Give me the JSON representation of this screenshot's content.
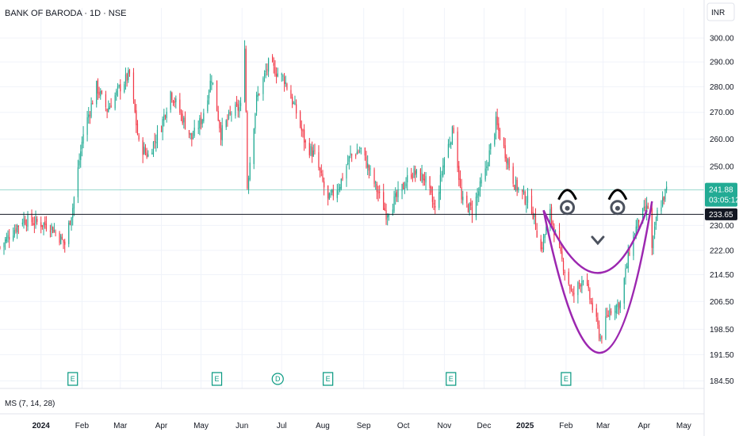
{
  "header": {
    "title": "BANK OF BARODA · 1D · NSE",
    "currency": "INR"
  },
  "indicator": {
    "label": "MS (7, 14, 28)"
  },
  "price_tags": {
    "last_price": "241.88",
    "countdown": "03:05:12",
    "level": "233.65",
    "last_color": "#22ab94",
    "level_color": "#131722"
  },
  "colors": {
    "up": "#22ab94",
    "down": "#f23645",
    "drawing": "#9c27b0",
    "sketch": "#4c525e"
  },
  "events": [
    {
      "label": "E",
      "date": "2024-01-25"
    },
    {
      "label": "E",
      "date": "2024-05-13"
    },
    {
      "label": "D",
      "date": "2024-06-28"
    },
    {
      "label": "E",
      "date": "2024-08-05"
    },
    {
      "label": "E",
      "date": "2024-11-06"
    },
    {
      "label": "E",
      "date": "2025-02-01"
    }
  ],
  "chart_data": {
    "type": "candlestick",
    "title": "BANK OF BARODA · 1D · NSE",
    "y_axis": {
      "position": "right",
      "scale": "log",
      "ticks": [
        "300.00",
        "290.00",
        "280.00",
        "270.00",
        "260.00",
        "250.00",
        "230.00",
        "222.00",
        "214.50",
        "206.50",
        "198.50",
        "191.50",
        "184.50"
      ],
      "ylim": [
        181,
        308
      ]
    },
    "x_axis": {
      "ticks": [
        {
          "label": "2024",
          "date": "2024-01-01"
        },
        {
          "label": "Feb",
          "date": "2024-02-01"
        },
        {
          "label": "Mar",
          "date": "2024-03-01"
        },
        {
          "label": "Apr",
          "date": "2024-04-01"
        },
        {
          "label": "May",
          "date": "2024-05-01"
        },
        {
          "label": "Jun",
          "date": "2024-06-01"
        },
        {
          "label": "Jul",
          "date": "2024-07-01"
        },
        {
          "label": "Aug",
          "date": "2024-08-01"
        },
        {
          "label": "Sep",
          "date": "2024-09-01"
        },
        {
          "label": "Oct",
          "date": "2024-10-01"
        },
        {
          "label": "Nov",
          "date": "2024-11-01"
        },
        {
          "label": "Dec",
          "date": "2024-12-01"
        },
        {
          "label": "2025",
          "date": "2025-01-01"
        },
        {
          "label": "Feb",
          "date": "2025-02-01"
        },
        {
          "label": "Mar",
          "date": "2025-03-01"
        },
        {
          "label": "Apr",
          "date": "2025-04-01"
        },
        {
          "label": "May",
          "date": "2025-05-01"
        }
      ],
      "xlim": [
        "2023-12-01",
        "2025-05-14"
      ]
    },
    "horizontal_lines": [
      {
        "value": 233.65,
        "color": "#131722"
      },
      {
        "value": 241.88,
        "color": "#22ab94"
      }
    ],
    "close_path": [
      [
        "2023-12-01",
        223
      ],
      [
        "2023-12-18",
        232
      ],
      [
        "2024-01-08",
        230
      ],
      [
        "2024-01-19",
        224
      ],
      [
        "2024-01-25",
        236
      ],
      [
        "2024-02-02",
        262
      ],
      [
        "2024-02-12",
        280
      ],
      [
        "2024-02-20",
        271
      ],
      [
        "2024-03-01",
        280
      ],
      [
        "2024-03-08",
        285
      ],
      [
        "2024-03-15",
        258
      ],
      [
        "2024-03-22",
        254
      ],
      [
        "2024-04-01",
        265
      ],
      [
        "2024-04-08",
        278
      ],
      [
        "2024-04-15",
        270
      ],
      [
        "2024-04-24",
        260
      ],
      [
        "2024-05-02",
        268
      ],
      [
        "2024-05-09",
        284
      ],
      [
        "2024-05-16",
        262
      ],
      [
        "2024-05-24",
        270
      ],
      [
        "2024-05-31",
        272
      ],
      [
        "2024-06-03",
        298
      ],
      [
        "2024-06-05",
        243
      ],
      [
        "2024-06-12",
        275
      ],
      [
        "2024-06-21",
        289
      ],
      [
        "2024-07-03",
        283
      ],
      [
        "2024-07-12",
        270
      ],
      [
        "2024-07-19",
        258
      ],
      [
        "2024-07-26",
        254
      ],
      [
        "2024-08-05",
        238
      ],
      [
        "2024-08-14",
        244
      ],
      [
        "2024-08-22",
        254
      ],
      [
        "2024-08-30",
        256
      ],
      [
        "2024-09-10",
        243
      ],
      [
        "2024-09-18",
        234
      ],
      [
        "2024-09-27",
        240
      ],
      [
        "2024-10-07",
        248
      ],
      [
        "2024-10-17",
        246
      ],
      [
        "2024-10-25",
        235
      ],
      [
        "2024-11-01",
        253
      ],
      [
        "2024-11-08",
        264
      ],
      [
        "2024-11-14",
        238
      ],
      [
        "2024-11-22",
        235
      ],
      [
        "2024-12-02",
        248
      ],
      [
        "2024-12-10",
        266
      ],
      [
        "2024-12-17",
        255
      ],
      [
        "2024-12-24",
        244
      ],
      [
        "2025-01-06",
        236
      ],
      [
        "2025-01-13",
        222
      ],
      [
        "2025-01-20",
        234
      ],
      [
        "2025-01-28",
        220
      ],
      [
        "2025-02-06",
        208
      ],
      [
        "2025-02-14",
        214
      ],
      [
        "2025-02-20",
        206
      ],
      [
        "2025-02-27",
        196
      ],
      [
        "2025-03-06",
        204
      ],
      [
        "2025-03-14",
        206
      ],
      [
        "2025-03-21",
        222
      ],
      [
        "2025-03-28",
        232
      ],
      [
        "2025-04-04",
        236
      ],
      [
        "2025-04-07",
        222
      ],
      [
        "2025-04-11",
        234
      ],
      [
        "2025-04-18",
        241.88
      ]
    ],
    "annotations": [
      {
        "type": "curve",
        "color": "#9c27b0",
        "points": [
          [
            "2025-01-15",
            235
          ],
          [
            "2025-02-25",
            215
          ],
          [
            "2025-04-03",
            235
          ]
        ]
      },
      {
        "type": "curve",
        "color": "#9c27b0",
        "points": [
          [
            "2025-01-15",
            235
          ],
          [
            "2025-02-27",
            192
          ],
          [
            "2025-04-07",
            238
          ]
        ]
      },
      {
        "type": "eye",
        "date": "2025-02-02",
        "value": 237
      },
      {
        "type": "eye",
        "date": "2025-03-12",
        "value": 237
      },
      {
        "type": "check",
        "date": "2025-02-25",
        "value": 225
      }
    ]
  }
}
